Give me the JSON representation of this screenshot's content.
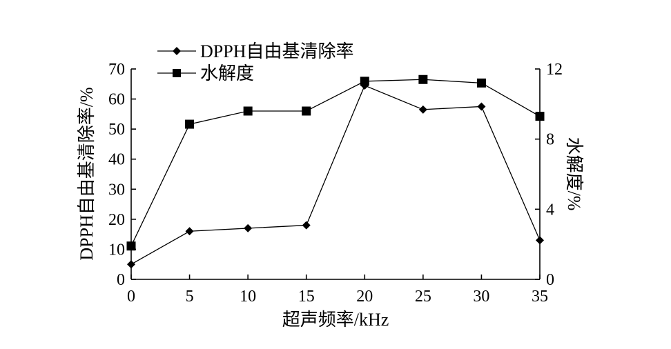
{
  "chart_data": {
    "type": "line",
    "x": [
      0,
      5,
      10,
      15,
      20,
      25,
      30,
      35
    ],
    "xlabel": "超声频率/kHz",
    "xlim": [
      0,
      35
    ],
    "xticks": [
      "0",
      "5",
      "10",
      "15",
      "20",
      "25",
      "30",
      "35"
    ],
    "y_left": {
      "label": "DPPH自由基清除率/%",
      "lim": [
        0,
        70
      ],
      "ticks": [
        "0",
        "10",
        "20",
        "30",
        "40",
        "50",
        "60",
        "70"
      ]
    },
    "y_right": {
      "label": "水解度/%",
      "lim": [
        0,
        12
      ],
      "ticks": [
        "0",
        "4",
        "8",
        "12"
      ]
    },
    "series": [
      {
        "name": "DPPH自由基清除率",
        "axis": "left",
        "marker": "diamond",
        "values": [
          5,
          16,
          17,
          18,
          64.5,
          56.5,
          57.5,
          13
        ]
      },
      {
        "name": "水解度",
        "axis": "right",
        "marker": "square",
        "values": [
          1.9,
          8.85,
          9.6,
          9.6,
          11.3,
          11.4,
          11.2,
          9.3
        ]
      }
    ],
    "legend_position": "top-left",
    "grid": false,
    "colors": {
      "line": "#000000",
      "marker": "#000000"
    }
  }
}
